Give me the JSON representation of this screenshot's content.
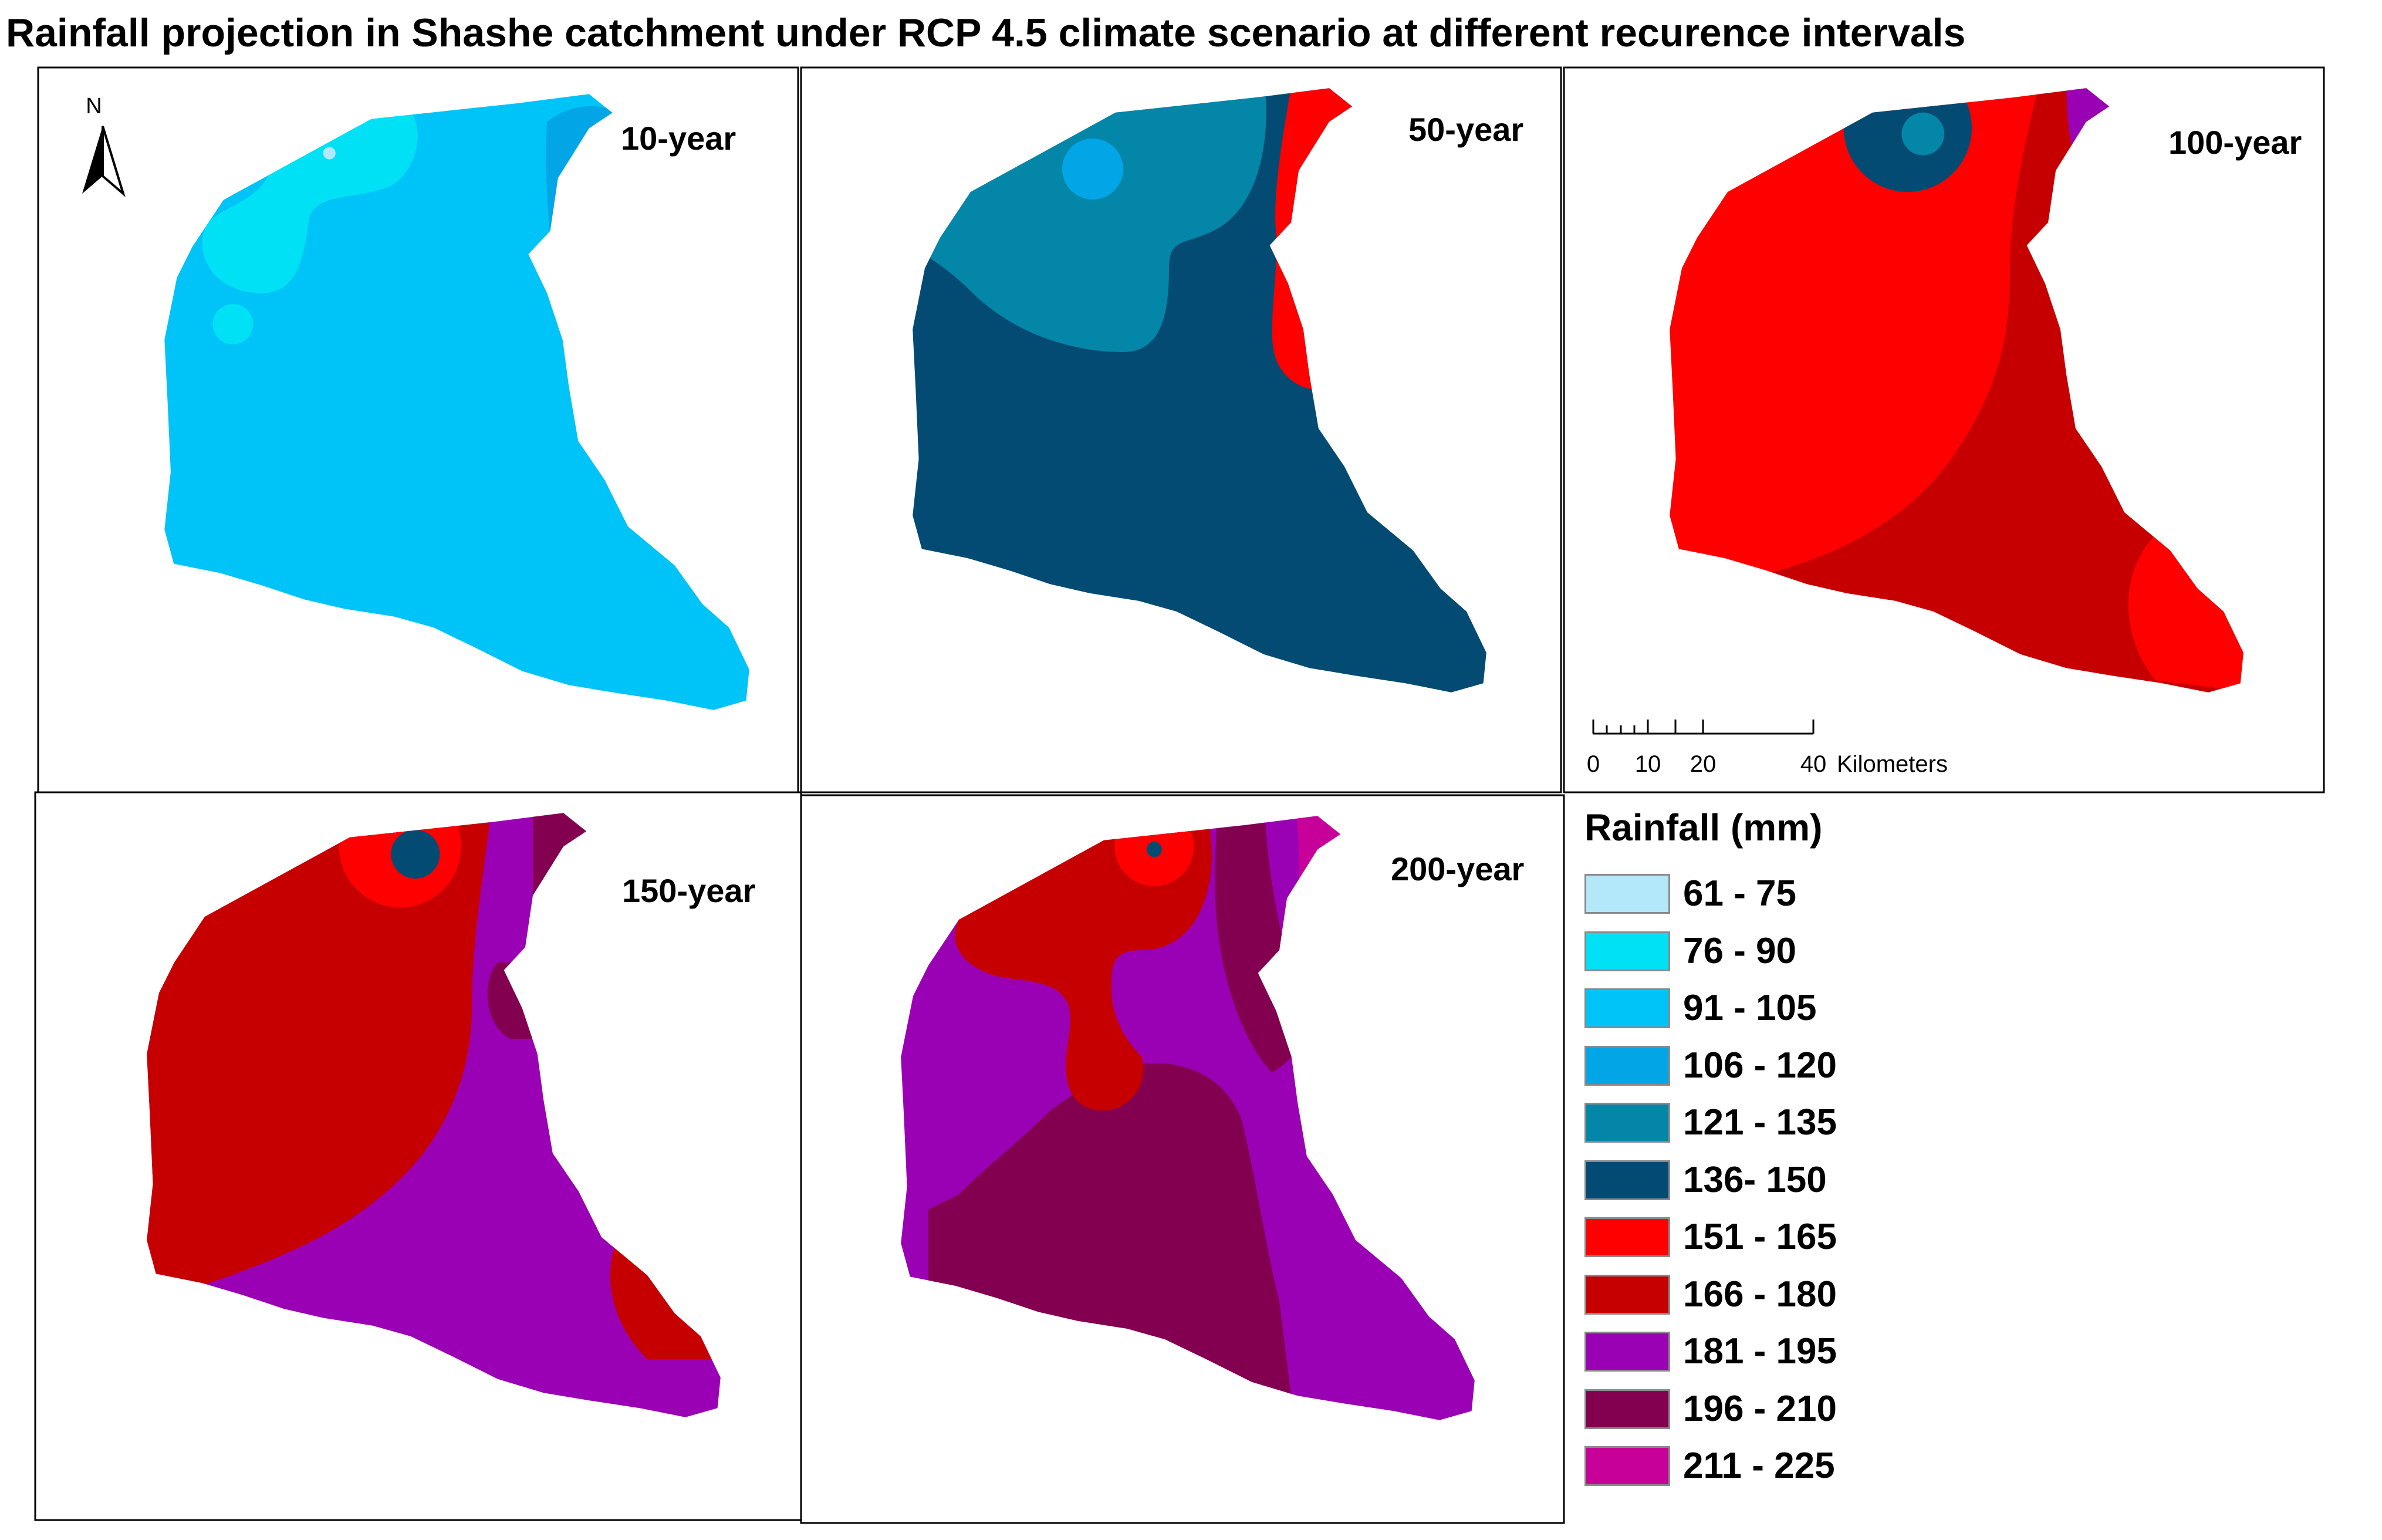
{
  "title": "Rainfall projection in Shashe catchment under RCP 4.5 climate scenario at different recurence intervals",
  "panels": [
    {
      "label": "10-year"
    },
    {
      "label": "50-year"
    },
    {
      "label": "100-year"
    },
    {
      "label": "150-year"
    },
    {
      "label": "200-year"
    }
  ],
  "north_arrow": {
    "label": "N"
  },
  "scale_bar": {
    "ticks": [
      "0",
      "10",
      "20",
      "40"
    ],
    "unit": "Kilometers"
  },
  "legend": {
    "title": "Rainfall (mm)",
    "classes": [
      {
        "label": "61 - 75",
        "color": "#b3e8fb"
      },
      {
        "label": "76 - 90",
        "color": "#00e1f5"
      },
      {
        "label": "91 - 105",
        "color": "#00c3f7"
      },
      {
        "label": "106 - 120",
        "color": "#02a6e6"
      },
      {
        "label": "121 - 135",
        "color": "#0486a8"
      },
      {
        "label": "136- 150",
        "color": "#034b72"
      },
      {
        "label": "151 - 165",
        "color": "#ff0000"
      },
      {
        "label": "166 - 180",
        "color": "#c60000"
      },
      {
        "label": "181 - 195",
        "color": "#9a00b4"
      },
      {
        "label": "196 - 210",
        "color": "#830050"
      },
      {
        "label": "211 - 225",
        "color": "#c8009a"
      }
    ]
  }
}
